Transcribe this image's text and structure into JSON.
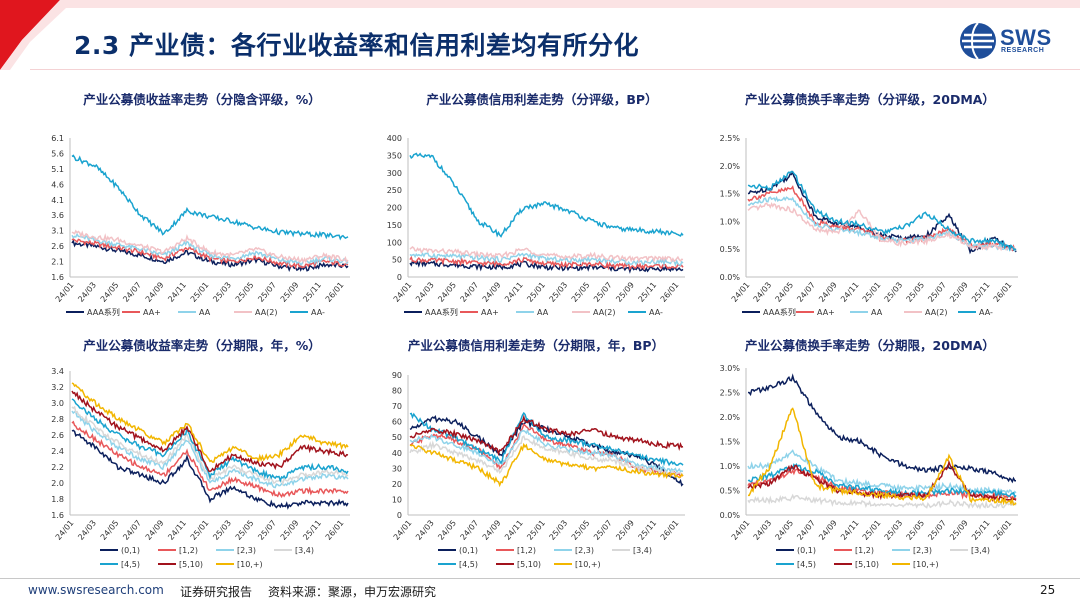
{
  "slide": {
    "title": "2.3 产业债：各行业收益率和信用利差均有所分化",
    "logo_text": "SWS",
    "logo_sub": "RESEARCH",
    "footer_url": "www.swsresearch.com",
    "footer_label": "证券研究报告",
    "footer_source": "资料来源：聚源，申万宏源研究",
    "page_number": "25"
  },
  "colors": {
    "accent": "#e0161e",
    "title": "#0b2f6b",
    "chart_title": "#1a2b6b",
    "brand": "#1f4e9a"
  },
  "chart_data": [
    {
      "type": "line",
      "title": "产业公募债收益率走势（分隐含评级，%）",
      "ylim": [
        1.6,
        6.1
      ],
      "yticks": [
        "1.6",
        "2.1",
        "2.6",
        "3.1",
        "3.6",
        "4.1",
        "4.6",
        "5.1",
        "5.6",
        "6.1"
      ],
      "categories": [
        "24/01",
        "24/03",
        "24/05",
        "24/07",
        "24/09",
        "24/11",
        "25/01",
        "25/03",
        "25/05",
        "25/07",
        "25/09",
        "25/11",
        "26/01"
      ],
      "series": [
        {
          "name": "AAA系列",
          "values": [
            2.7,
            2.6,
            2.45,
            2.3,
            2.1,
            2.4,
            2.1,
            2.0,
            2.15,
            1.95,
            1.85,
            2.0,
            1.95
          ],
          "color": "#0b1f5c"
        },
        {
          "name": "AA+",
          "values": [
            2.8,
            2.68,
            2.55,
            2.4,
            2.2,
            2.55,
            2.2,
            2.1,
            2.25,
            2.05,
            1.95,
            2.1,
            2.0
          ],
          "color": "#e8585a"
        },
        {
          "name": "AA",
          "values": [
            2.95,
            2.8,
            2.65,
            2.5,
            2.3,
            2.7,
            2.3,
            2.2,
            2.4,
            2.15,
            2.05,
            2.2,
            2.1
          ],
          "color": "#8fd3ea"
        },
        {
          "name": "AA(2)",
          "values": [
            3.05,
            2.9,
            2.8,
            2.6,
            2.4,
            2.85,
            2.4,
            2.3,
            2.5,
            2.25,
            2.15,
            2.3,
            2.15
          ],
          "color": "#f2c2c6"
        },
        {
          "name": "AA-",
          "values": [
            5.5,
            5.2,
            4.5,
            3.6,
            3.0,
            3.75,
            3.55,
            3.4,
            3.2,
            3.05,
            3.0,
            2.95,
            2.9
          ],
          "color": "#1aa3cf"
        }
      ]
    },
    {
      "type": "line",
      "title": "产业公募债信用利差走势（分评级，BP）",
      "ylim": [
        0,
        400
      ],
      "yticks": [
        "0",
        "50",
        "100",
        "150",
        "200",
        "250",
        "300",
        "350",
        "400"
      ],
      "categories": [
        "24/01",
        "24/03",
        "24/05",
        "24/07",
        "24/09",
        "24/11",
        "25/01",
        "25/03",
        "25/05",
        "25/07",
        "25/09",
        "25/11",
        "26/01"
      ],
      "series": [
        {
          "name": "AAA系列",
          "values": [
            40,
            38,
            35,
            30,
            28,
            38,
            28,
            25,
            28,
            24,
            22,
            24,
            22
          ],
          "color": "#0b1f5c"
        },
        {
          "name": "AA+",
          "values": [
            50,
            48,
            45,
            40,
            38,
            50,
            38,
            35,
            38,
            32,
            30,
            32,
            28
          ],
          "color": "#e8585a"
        },
        {
          "name": "AA",
          "values": [
            65,
            62,
            60,
            55,
            50,
            65,
            52,
            48,
            52,
            45,
            42,
            45,
            40
          ],
          "color": "#8fd3ea"
        },
        {
          "name": "AA(2)",
          "values": [
            80,
            75,
            72,
            65,
            60,
            80,
            62,
            58,
            62,
            55,
            52,
            55,
            50
          ],
          "color": "#f2c2c6"
        },
        {
          "name": "AA-",
          "values": [
            350,
            345,
            260,
            160,
            120,
            200,
            210,
            190,
            160,
            140,
            135,
            130,
            120
          ],
          "color": "#1aa3cf"
        }
      ]
    },
    {
      "type": "line",
      "title": "产业公募债换手率走势（分评级，20DMA）",
      "ylim": [
        0,
        2.5
      ],
      "yticks": [
        "0.0%",
        "0.5%",
        "1.0%",
        "1.5%",
        "2.0%",
        "2.5%"
      ],
      "categories": [
        "24/01",
        "24/03",
        "24/05",
        "24/07",
        "24/09",
        "24/11",
        "25/01",
        "25/03",
        "25/05",
        "25/07",
        "25/09",
        "25/11",
        "26/01"
      ],
      "series": [
        {
          "name": "AAA系列",
          "values": [
            1.5,
            1.6,
            1.85,
            1.1,
            0.95,
            0.9,
            0.75,
            0.7,
            0.75,
            1.1,
            0.45,
            0.7,
            0.45
          ],
          "color": "#0b1f5c"
        },
        {
          "name": "AA+",
          "values": [
            1.4,
            1.5,
            1.6,
            1.0,
            0.9,
            0.85,
            0.7,
            0.65,
            0.7,
            0.85,
            0.55,
            0.6,
            0.5
          ],
          "color": "#e8585a"
        },
        {
          "name": "AA",
          "values": [
            1.3,
            1.4,
            1.4,
            0.95,
            0.85,
            0.8,
            0.7,
            0.65,
            0.7,
            0.8,
            0.55,
            0.55,
            0.5
          ],
          "color": "#8fd3ea"
        },
        {
          "name": "AA(2)",
          "values": [
            1.2,
            1.3,
            1.2,
            0.85,
            0.8,
            1.2,
            0.65,
            0.6,
            0.65,
            0.75,
            0.55,
            0.55,
            0.5
          ],
          "color": "#f2c2c6"
        },
        {
          "name": "AA-",
          "values": [
            1.65,
            1.6,
            1.9,
            1.2,
            1.0,
            0.95,
            0.8,
            0.9,
            1.15,
            0.85,
            0.65,
            0.65,
            0.5
          ],
          "color": "#1aa3cf"
        }
      ]
    },
    {
      "type": "line",
      "title": "产业公募债收益率走势（分期限，年，%）",
      "ylim": [
        1.6,
        3.4
      ],
      "yticks": [
        "1.6",
        "1.8",
        "2.0",
        "2.2",
        "2.4",
        "2.6",
        "2.8",
        "3.0",
        "3.2",
        "3.4"
      ],
      "categories": [
        "24/01",
        "24/03",
        "24/05",
        "24/07",
        "24/09",
        "24/11",
        "25/01",
        "25/03",
        "25/05",
        "25/07",
        "25/09",
        "25/11",
        "26/01"
      ],
      "series": [
        {
          "name": "(0,1)",
          "values": [
            2.65,
            2.45,
            2.2,
            2.1,
            2.0,
            2.3,
            1.8,
            1.95,
            1.8,
            1.7,
            1.75,
            1.75,
            1.75
          ],
          "color": "#0b1f5c"
        },
        {
          "name": "[1,2)",
          "values": [
            2.75,
            2.55,
            2.35,
            2.2,
            2.1,
            2.4,
            1.9,
            2.05,
            1.95,
            1.85,
            1.9,
            1.9,
            1.9
          ],
          "color": "#e8585a"
        },
        {
          "name": "[2,3)",
          "values": [
            2.9,
            2.65,
            2.45,
            2.3,
            2.2,
            2.55,
            2.0,
            2.15,
            2.05,
            1.95,
            2.05,
            2.1,
            2.05
          ],
          "color": "#8fd3ea"
        },
        {
          "name": "[3,4)",
          "values": [
            2.95,
            2.7,
            2.5,
            2.35,
            2.25,
            2.6,
            2.05,
            2.2,
            2.1,
            2.0,
            2.1,
            2.15,
            2.1
          ],
          "color": "#d8d8d8"
        },
        {
          "name": "[4,5)",
          "values": [
            3.05,
            2.8,
            2.6,
            2.45,
            2.35,
            2.65,
            2.1,
            2.3,
            2.15,
            2.05,
            2.2,
            2.2,
            2.15
          ],
          "color": "#1aa3cf"
        },
        {
          "name": "[5,10)",
          "values": [
            3.15,
            2.9,
            2.7,
            2.55,
            2.4,
            2.7,
            2.15,
            2.35,
            2.25,
            2.2,
            2.45,
            2.4,
            2.35
          ],
          "color": "#a1121c"
        },
        {
          "name": "[10,+)",
          "values": [
            3.25,
            3.0,
            2.8,
            2.65,
            2.5,
            2.75,
            2.25,
            2.45,
            2.3,
            2.35,
            2.6,
            2.5,
            2.45
          ],
          "color": "#f2b600"
        }
      ]
    },
    {
      "type": "line",
      "title": "产业公募债信用利差走势（分期限，年，BP）",
      "ylim": [
        0,
        90
      ],
      "yticks": [
        "0",
        "10",
        "20",
        "30",
        "40",
        "50",
        "60",
        "70",
        "80",
        "90"
      ],
      "categories": [
        "24/01",
        "24/03",
        "24/05",
        "24/07",
        "24/09",
        "24/11",
        "25/01",
        "25/03",
        "25/05",
        "25/07",
        "25/09",
        "25/11",
        "26/01"
      ],
      "series": [
        {
          "name": "(0,1)",
          "values": [
            55,
            62,
            60,
            50,
            38,
            60,
            55,
            50,
            45,
            40,
            38,
            30,
            20
          ],
          "color": "#0b1f5c"
        },
        {
          "name": "[1,2)",
          "values": [
            45,
            52,
            48,
            42,
            30,
            58,
            48,
            45,
            40,
            38,
            30,
            28,
            25
          ],
          "color": "#e8585a"
        },
        {
          "name": "[2,3)",
          "values": [
            48,
            50,
            45,
            40,
            32,
            55,
            45,
            42,
            40,
            38,
            32,
            30,
            28
          ],
          "color": "#8fd3ea"
        },
        {
          "name": "[3,4)",
          "values": [
            40,
            45,
            40,
            35,
            28,
            50,
            42,
            40,
            36,
            35,
            30,
            28,
            26
          ],
          "color": "#d8d8d8"
        },
        {
          "name": "[4,5)",
          "values": [
            65,
            55,
            50,
            42,
            35,
            65,
            50,
            48,
            45,
            42,
            38,
            35,
            32
          ],
          "color": "#1aa3cf"
        },
        {
          "name": "[5,10)",
          "values": [
            50,
            55,
            52,
            48,
            40,
            62,
            55,
            52,
            55,
            50,
            48,
            45,
            44
          ],
          "color": "#a1121c"
        },
        {
          "name": "[10,+)",
          "values": [
            45,
            40,
            35,
            30,
            20,
            45,
            35,
            32,
            30,
            30,
            28,
            26,
            25
          ],
          "color": "#f2b600"
        }
      ]
    },
    {
      "type": "line",
      "title": "产业公募债换手率走势（分期限，20DMA）",
      "ylim": [
        0,
        3.0
      ],
      "yticks": [
        "0.0%",
        "0.5%",
        "1.0%",
        "1.5%",
        "2.0%",
        "2.5%",
        "3.0%"
      ],
      "categories": [
        "24/01",
        "24/03",
        "24/05",
        "24/07",
        "24/09",
        "24/11",
        "25/01",
        "25/03",
        "25/05",
        "25/07",
        "25/09",
        "25/11",
        "26/01"
      ],
      "series": [
        {
          "name": "(0,1)",
          "values": [
            2.5,
            2.6,
            2.8,
            2.1,
            1.6,
            1.5,
            1.2,
            1.0,
            0.9,
            1.0,
            0.95,
            0.85,
            0.7
          ],
          "color": "#0b1f5c"
        },
        {
          "name": "[1,2)",
          "values": [
            0.6,
            0.7,
            0.9,
            0.8,
            0.55,
            0.5,
            0.45,
            0.4,
            0.4,
            0.45,
            0.4,
            0.4,
            0.35
          ],
          "color": "#e8585a"
        },
        {
          "name": "[2,3)",
          "values": [
            1.0,
            1.0,
            1.3,
            1.0,
            0.7,
            0.65,
            0.6,
            0.55,
            0.55,
            0.6,
            0.5,
            0.5,
            0.45
          ],
          "color": "#8fd3ea"
        },
        {
          "name": "[3,4)",
          "values": [
            0.3,
            0.3,
            0.35,
            0.3,
            0.25,
            0.25,
            0.2,
            0.2,
            0.2,
            0.25,
            0.2,
            0.2,
            0.2
          ],
          "color": "#d8d8d8"
        },
        {
          "name": "[4,5)",
          "values": [
            0.7,
            0.8,
            1.0,
            0.9,
            0.6,
            0.55,
            0.5,
            0.45,
            0.45,
            0.5,
            0.45,
            0.45,
            0.4
          ],
          "color": "#1aa3cf"
        },
        {
          "name": "[5,10)",
          "values": [
            0.55,
            0.65,
            1.0,
            0.75,
            0.5,
            0.45,
            0.4,
            0.4,
            0.4,
            1.05,
            0.4,
            0.35,
            0.3
          ],
          "color": "#a1121c"
        },
        {
          "name": "[10,+)",
          "values": [
            0.4,
            1.0,
            2.2,
            0.6,
            0.5,
            0.45,
            0.4,
            0.35,
            0.35,
            1.2,
            0.3,
            0.3,
            0.25
          ],
          "color": "#f2b600"
        }
      ]
    }
  ]
}
